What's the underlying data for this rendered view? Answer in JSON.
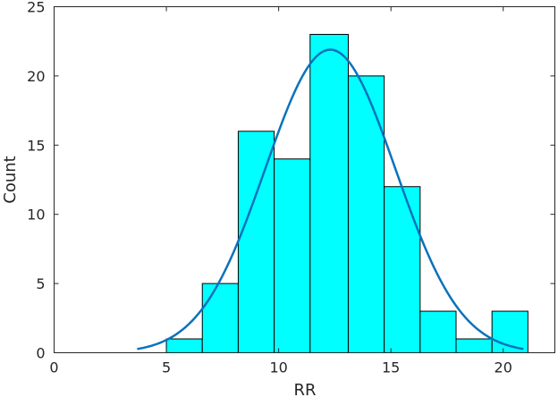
{
  "chart_data": {
    "type": "bar",
    "xlabel": "RR",
    "ylabel": "Count",
    "xlim": [
      0,
      22.3
    ],
    "ylim": [
      0,
      25
    ],
    "xticks": [
      0,
      5,
      10,
      15,
      20
    ],
    "yticks": [
      0,
      5,
      10,
      15,
      20,
      25
    ],
    "bins": [
      {
        "x0": 5.0,
        "x1": 6.6,
        "count": 1
      },
      {
        "x0": 6.6,
        "x1": 8.2,
        "count": 5
      },
      {
        "x0": 8.2,
        "x1": 9.8,
        "count": 16
      },
      {
        "x0": 9.8,
        "x1": 11.4,
        "count": 14
      },
      {
        "x0": 11.4,
        "x1": 13.1,
        "count": 23
      },
      {
        "x0": 13.1,
        "x1": 14.7,
        "count": 20
      },
      {
        "x0": 14.7,
        "x1": 16.3,
        "count": 12
      },
      {
        "x0": 16.3,
        "x1": 17.9,
        "count": 3
      },
      {
        "x0": 17.9,
        "x1": 19.5,
        "count": 1
      },
      {
        "x0": 19.5,
        "x1": 21.1,
        "count": 3
      }
    ],
    "fit_curve": {
      "type": "normal",
      "mean": 12.3,
      "std": 2.9,
      "peak": 21.9,
      "x_range": [
        3.7,
        20.9
      ]
    },
    "bar_color": "#00ffff",
    "bar_edge_color": "#000000",
    "curve_color": "#0a72bd",
    "grid": false
  }
}
